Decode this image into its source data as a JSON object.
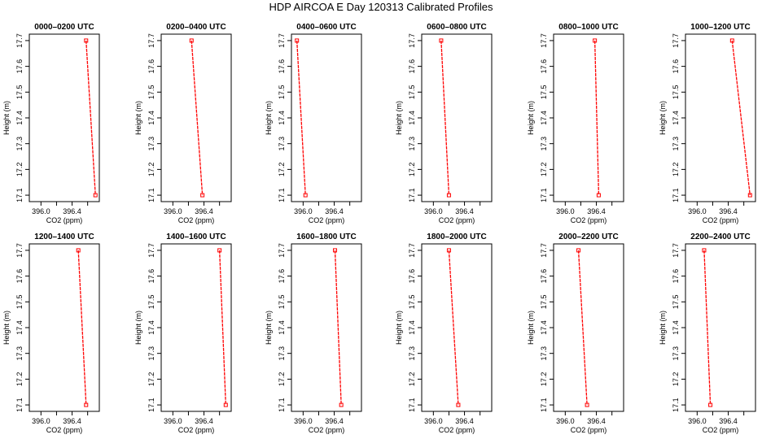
{
  "figure": {
    "title": "HDP AIRCOA E  Day 120313  Calibrated Profiles"
  },
  "colors": {
    "series": "#ff0000",
    "axis": "#000000",
    "background": "#ffffff"
  },
  "chart_data": [
    {
      "type": "line",
      "title": "0000–0200 UTC",
      "xlabel": "CO2 (ppm)",
      "ylabel": "Height (m)",
      "xlim": [
        395.85,
        396.75
      ],
      "ylim": [
        17.075,
        17.725
      ],
      "xticks": [
        396.0,
        396.4
      ],
      "yticks": [
        17.1,
        17.2,
        17.3,
        17.4,
        17.5,
        17.6,
        17.7
      ],
      "series": [
        {
          "x": [
            396.58,
            396.7
          ],
          "y": [
            17.7,
            17.1
          ]
        }
      ],
      "grid": false
    },
    {
      "type": "line",
      "title": "0200–0400 UTC",
      "xlabel": "CO2 (ppm)",
      "ylabel": "Height (m)",
      "xlim": [
        395.85,
        396.75
      ],
      "ylim": [
        17.075,
        17.725
      ],
      "xticks": [
        396.0,
        396.4
      ],
      "yticks": [
        17.1,
        17.2,
        17.3,
        17.4,
        17.5,
        17.6,
        17.7
      ],
      "series": [
        {
          "x": [
            396.24,
            396.38
          ],
          "y": [
            17.7,
            17.1
          ]
        }
      ],
      "grid": false
    },
    {
      "type": "line",
      "title": "0400–0600 UTC",
      "xlabel": "CO2 (ppm)",
      "ylabel": "Height (m)",
      "xlim": [
        395.85,
        396.75
      ],
      "ylim": [
        17.075,
        17.725
      ],
      "xticks": [
        396.0,
        396.4
      ],
      "yticks": [
        17.1,
        17.2,
        17.3,
        17.4,
        17.5,
        17.6,
        17.7
      ],
      "series": [
        {
          "x": [
            395.92,
            396.03
          ],
          "y": [
            17.7,
            17.1
          ]
        }
      ],
      "grid": false
    },
    {
      "type": "line",
      "title": "0600–0800 UTC",
      "xlabel": "CO2 (ppm)",
      "ylabel": "Height (m)",
      "xlim": [
        395.85,
        396.75
      ],
      "ylim": [
        17.075,
        17.725
      ],
      "xticks": [
        396.0,
        396.4
      ],
      "yticks": [
        17.1,
        17.2,
        17.3,
        17.4,
        17.5,
        17.6,
        17.7
      ],
      "series": [
        {
          "x": [
            396.1,
            396.2
          ],
          "y": [
            17.7,
            17.1
          ]
        }
      ],
      "grid": false
    },
    {
      "type": "line",
      "title": "0800–1000 UTC",
      "xlabel": "CO2 (ppm)",
      "ylabel": "Height (m)",
      "xlim": [
        395.85,
        396.75
      ],
      "ylim": [
        17.075,
        17.725
      ],
      "xticks": [
        396.0,
        396.4
      ],
      "yticks": [
        17.1,
        17.2,
        17.3,
        17.4,
        17.5,
        17.6,
        17.7
      ],
      "series": [
        {
          "x": [
            396.38,
            396.43
          ],
          "y": [
            17.7,
            17.1
          ]
        }
      ],
      "grid": false
    },
    {
      "type": "line",
      "title": "1000–1200 UTC",
      "xlabel": "CO2 (ppm)",
      "ylabel": "Height (m)",
      "xlim": [
        395.85,
        396.75
      ],
      "ylim": [
        17.075,
        17.725
      ],
      "xticks": [
        396.0,
        396.4
      ],
      "yticks": [
        17.1,
        17.2,
        17.3,
        17.4,
        17.5,
        17.6,
        17.7
      ],
      "series": [
        {
          "x": [
            396.45,
            396.68
          ],
          "y": [
            17.7,
            17.1
          ]
        }
      ],
      "grid": false
    },
    {
      "type": "line",
      "title": "1200–1400 UTC",
      "xlabel": "CO2 (ppm)",
      "ylabel": "Height (m)",
      "xlim": [
        395.85,
        396.75
      ],
      "ylim": [
        17.075,
        17.725
      ],
      "xticks": [
        396.0,
        396.4
      ],
      "yticks": [
        17.1,
        17.2,
        17.3,
        17.4,
        17.5,
        17.6,
        17.7
      ],
      "series": [
        {
          "x": [
            396.48,
            396.58
          ],
          "y": [
            17.7,
            17.1
          ]
        }
      ],
      "grid": false
    },
    {
      "type": "line",
      "title": "1400–1600 UTC",
      "xlabel": "CO2 (ppm)",
      "ylabel": "Height (m)",
      "xlim": [
        395.85,
        396.75
      ],
      "ylim": [
        17.075,
        17.725
      ],
      "xticks": [
        396.0,
        396.4
      ],
      "yticks": [
        17.1,
        17.2,
        17.3,
        17.4,
        17.5,
        17.6,
        17.7
      ],
      "series": [
        {
          "x": [
            396.6,
            396.68
          ],
          "y": [
            17.7,
            17.1
          ]
        }
      ],
      "grid": false
    },
    {
      "type": "line",
      "title": "1600–1800 UTC",
      "xlabel": "CO2 (ppm)",
      "ylabel": "Height (m)",
      "xlim": [
        395.85,
        396.75
      ],
      "ylim": [
        17.075,
        17.725
      ],
      "xticks": [
        396.0,
        396.4
      ],
      "yticks": [
        17.1,
        17.2,
        17.3,
        17.4,
        17.5,
        17.6,
        17.7
      ],
      "series": [
        {
          "x": [
            396.41,
            396.49
          ],
          "y": [
            17.7,
            17.1
          ]
        }
      ],
      "grid": false
    },
    {
      "type": "line",
      "title": "1800–2000 UTC",
      "xlabel": "CO2 (ppm)",
      "ylabel": "Height (m)",
      "xlim": [
        395.85,
        396.75
      ],
      "ylim": [
        17.075,
        17.725
      ],
      "xticks": [
        396.0,
        396.4
      ],
      "yticks": [
        17.1,
        17.2,
        17.3,
        17.4,
        17.5,
        17.6,
        17.7
      ],
      "series": [
        {
          "x": [
            396.2,
            396.32
          ],
          "y": [
            17.7,
            17.1
          ]
        }
      ],
      "grid": false
    },
    {
      "type": "line",
      "title": "2000–2200 UTC",
      "xlabel": "CO2 (ppm)",
      "ylabel": "Height (m)",
      "xlim": [
        395.85,
        396.75
      ],
      "ylim": [
        17.075,
        17.725
      ],
      "xticks": [
        396.0,
        396.4
      ],
      "yticks": [
        17.1,
        17.2,
        17.3,
        17.4,
        17.5,
        17.6,
        17.7
      ],
      "series": [
        {
          "x": [
            396.17,
            396.28
          ],
          "y": [
            17.7,
            17.1
          ]
        }
      ],
      "grid": false
    },
    {
      "type": "line",
      "title": "2200–2400 UTC",
      "xlabel": "CO2 (ppm)",
      "ylabel": "Height (m)",
      "xlim": [
        395.85,
        396.75
      ],
      "ylim": [
        17.075,
        17.725
      ],
      "xticks": [
        396.0,
        396.4
      ],
      "yticks": [
        17.1,
        17.2,
        17.3,
        17.4,
        17.5,
        17.6,
        17.7
      ],
      "series": [
        {
          "x": [
            396.09,
            396.17
          ],
          "y": [
            17.7,
            17.1
          ]
        }
      ],
      "grid": false
    }
  ]
}
